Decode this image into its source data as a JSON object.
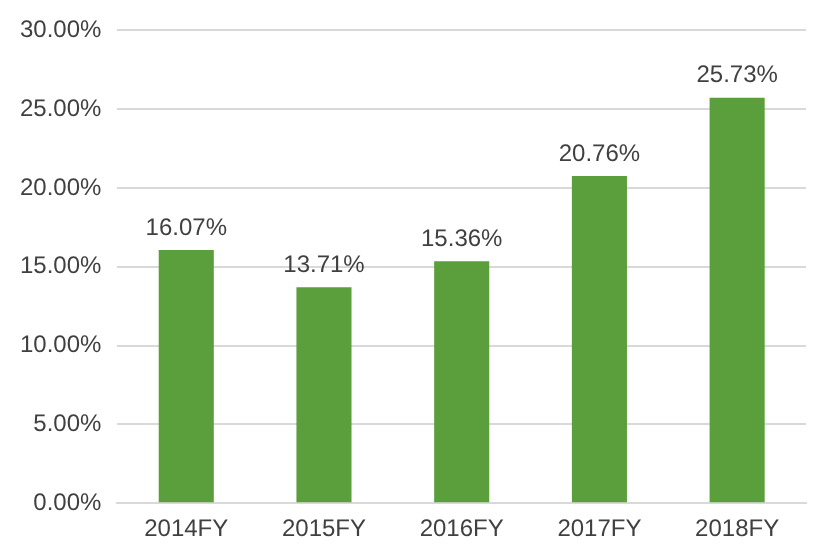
{
  "chart_data": {
    "type": "bar",
    "categories": [
      "2014FY",
      "2015FY",
      "2016FY",
      "2017FY",
      "2018FY"
    ],
    "values": [
      16.07,
      13.71,
      15.36,
      20.76,
      25.73
    ],
    "value_labels": [
      "16.07%",
      "13.71%",
      "15.36%",
      "20.76%",
      "25.73%"
    ],
    "color": "#5b9e3c",
    "ylim": [
      0,
      30
    ],
    "yticks": [
      {
        "value": 0,
        "label": "0.00%"
      },
      {
        "value": 5,
        "label": "5.00%"
      },
      {
        "value": 10,
        "label": "10.00%"
      },
      {
        "value": 15,
        "label": "15.00%"
      },
      {
        "value": 20,
        "label": "20.00%"
      },
      {
        "value": 25,
        "label": "25.00%"
      },
      {
        "value": 30,
        "label": "30.00%"
      }
    ],
    "grid": "y",
    "legend": false
  }
}
